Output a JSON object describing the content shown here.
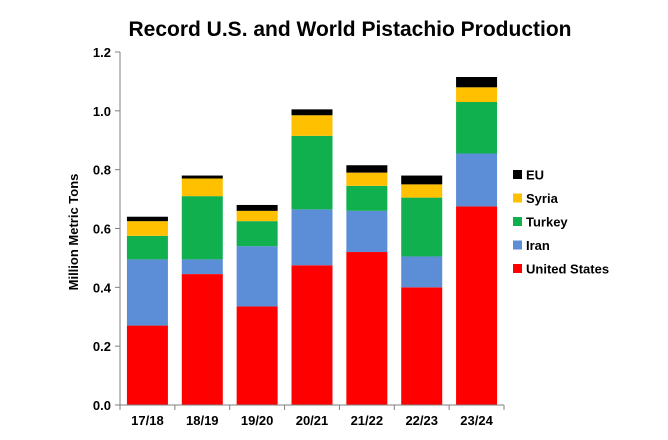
{
  "chart_data": {
    "type": "bar",
    "stacked": true,
    "title": "Record U.S. and World Pistachio Production",
    "xlabel": "",
    "ylabel": "Million Metric Tons",
    "ylim": [
      0,
      1.2
    ],
    "yticks": [
      0,
      0.2,
      0.4,
      0.6,
      0.8,
      1.0,
      1.2
    ],
    "ytick_labels": [
      "0.0",
      "0.2",
      "0.4",
      "0.6",
      "0.8",
      "1.0",
      "1.2"
    ],
    "categories": [
      "17/18",
      "18/19",
      "19/20",
      "20/21",
      "21/22",
      "22/23",
      "23/24"
    ],
    "series": [
      {
        "name": "United States",
        "color": "#ff0000",
        "values": [
          0.27,
          0.445,
          0.335,
          0.475,
          0.52,
          0.4,
          0.675
        ]
      },
      {
        "name": "Iran",
        "color": "#5b8ed6",
        "values": [
          0.225,
          0.05,
          0.205,
          0.19,
          0.14,
          0.105,
          0.18
        ]
      },
      {
        "name": "Turkey",
        "color": "#11b04e",
        "values": [
          0.08,
          0.215,
          0.085,
          0.25,
          0.085,
          0.2,
          0.175
        ]
      },
      {
        "name": "Syria",
        "color": "#ffc000",
        "values": [
          0.05,
          0.06,
          0.035,
          0.07,
          0.045,
          0.045,
          0.05
        ]
      },
      {
        "name": "EU",
        "color": "#000000",
        "values": [
          0.015,
          0.01,
          0.02,
          0.02,
          0.025,
          0.03,
          0.035
        ]
      }
    ],
    "legend_order": [
      "EU",
      "Syria",
      "Turkey",
      "Iran",
      "United States"
    ],
    "legend_position": "right",
    "grid": false
  }
}
